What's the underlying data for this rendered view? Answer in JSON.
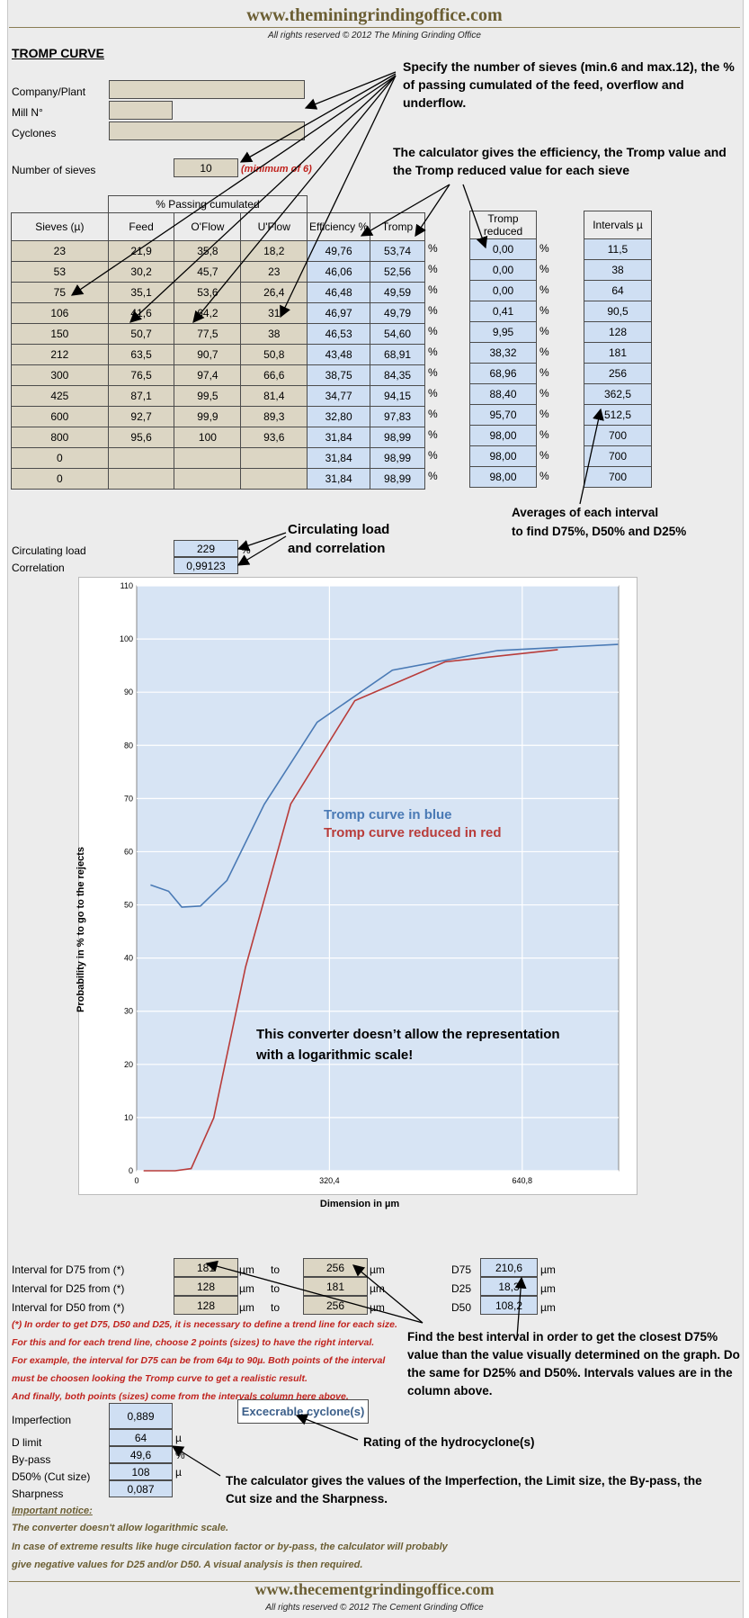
{
  "header": {
    "site": "www.theminingrindingoffice.com",
    "rights": "All rights reserved © 2012 The Mining Grinding Office"
  },
  "footer": {
    "site": "www.thecementgrindingoffice.com",
    "rights": "All rights reserved © 2012 The Cement Grinding Office"
  },
  "title": "TROMP CURVE",
  "form": {
    "company_label": "Company/Plant",
    "mill_label": "Mill N°",
    "cyclones_label": "Cyclones",
    "company_value": "",
    "mill_value": "",
    "cyclones_value": "",
    "sieves_label": "Number of sieves",
    "sieves_value": "10",
    "sieves_hint": "(minimum of 6)"
  },
  "notes": {
    "specify": "Specify the number of sieves (min.6 and max.12), the % of passing cumulated of the feed, overflow and underflow.",
    "calculator": "The calculator gives the efficiency, the Tromp value and the Tromp reduced value for each sieve",
    "averages_1": "Averages of each interval",
    "averages_2": "to find D75%, D50% and D25%",
    "circ_1": "Circulating load",
    "circ_2": "and correlation",
    "graph_note_1": "This converter doesn’t allow the representation",
    "graph_note_2": "with a logarithmic  scale!",
    "best_interval": "Find the best interval in order to get the closest D75% value than the value visually determined on the graph. Do the same for D25% and D50%. Intervals values are in the column above.",
    "rating": "Rating of the hydrocyclone(s)",
    "values_note": "The calculator gives the values of  the Imperfection, the Limit size, the By-pass, the Cut size and the Sharpness."
  },
  "table": {
    "group_header": "% Passing cumulated",
    "headers": {
      "sieves": "Sieves (µ)",
      "feed": "Feed",
      "oflow": "O'Flow",
      "uflow": "U'Flow",
      "efficiency": "Efficiency %",
      "tromp": "Tromp",
      "tromp_reduced": "Tromp reduced",
      "intervals": "Intervals µ"
    },
    "pct": "%",
    "rows": [
      {
        "sieve": "23",
        "feed": "21,9",
        "oflow": "35,8",
        "uflow": "18,2",
        "eff": "49,76",
        "tromp": "53,74",
        "reduced": "0,00",
        "interval": "11,5"
      },
      {
        "sieve": "53",
        "feed": "30,2",
        "oflow": "45,7",
        "uflow": "23",
        "eff": "46,06",
        "tromp": "52,56",
        "reduced": "0,00",
        "interval": "38"
      },
      {
        "sieve": "75",
        "feed": "35,1",
        "oflow": "53,6",
        "uflow": "26,4",
        "eff": "46,48",
        "tromp": "49,59",
        "reduced": "0,00",
        "interval": "64"
      },
      {
        "sieve": "106",
        "feed": "41,6",
        "oflow": "64,2",
        "uflow": "31",
        "eff": "46,97",
        "tromp": "49,79",
        "reduced": "0,41",
        "interval": "90,5"
      },
      {
        "sieve": "150",
        "feed": "50,7",
        "oflow": "77,5",
        "uflow": "38",
        "eff": "46,53",
        "tromp": "54,60",
        "reduced": "9,95",
        "interval": "128"
      },
      {
        "sieve": "212",
        "feed": "63,5",
        "oflow": "90,7",
        "uflow": "50,8",
        "eff": "43,48",
        "tromp": "68,91",
        "reduced": "38,32",
        "interval": "181"
      },
      {
        "sieve": "300",
        "feed": "76,5",
        "oflow": "97,4",
        "uflow": "66,6",
        "eff": "38,75",
        "tromp": "84,35",
        "reduced": "68,96",
        "interval": "256"
      },
      {
        "sieve": "425",
        "feed": "87,1",
        "oflow": "99,5",
        "uflow": "81,4",
        "eff": "34,77",
        "tromp": "94,15",
        "reduced": "88,40",
        "interval": "362,5"
      },
      {
        "sieve": "600",
        "feed": "92,7",
        "oflow": "99,9",
        "uflow": "89,3",
        "eff": "32,80",
        "tromp": "97,83",
        "reduced": "95,70",
        "interval": "512,5"
      },
      {
        "sieve": "800",
        "feed": "95,6",
        "oflow": "100",
        "uflow": "93,6",
        "eff": "31,84",
        "tromp": "98,99",
        "reduced": "98,00",
        "interval": "700"
      },
      {
        "sieve": "0",
        "feed": "",
        "oflow": "",
        "uflow": "",
        "eff": "31,84",
        "tromp": "98,99",
        "reduced": "98,00",
        "interval": "700"
      },
      {
        "sieve": "0",
        "feed": "",
        "oflow": "",
        "uflow": "",
        "eff": "31,84",
        "tromp": "98,99",
        "reduced": "98,00",
        "interval": "700"
      }
    ]
  },
  "circulating": {
    "label": "Circulating load",
    "value": "229",
    "unit": "%",
    "corr_label": "Correlation",
    "corr_value": "0,99123"
  },
  "colors": {
    "blue_curve": "#4a7ab5",
    "red_curve": "#b83c3a",
    "plot_bg": "#d7e4f4",
    "tan_cell": "#dcd6c4",
    "blue_cell": "#cfdff3"
  },
  "chart_data": {
    "type": "line",
    "ylabel": "Probability in % to go to the rejects",
    "xlabel": "Dimension in µm",
    "xlim": [
      0,
      801
    ],
    "ylim": [
      0,
      110
    ],
    "xticks": [
      "0",
      "320,4",
      "640,8"
    ],
    "yticks": [
      "0",
      "10",
      "20",
      "30",
      "40",
      "50",
      "60",
      "70",
      "80",
      "90",
      "100",
      "110"
    ],
    "grid": true,
    "legend": [
      "Tromp curve in blue",
      "Tromp curve reduced in red"
    ],
    "series": [
      {
        "name": "Tromp curve in blue",
        "color": "#4a7ab5",
        "x": [
          23,
          53,
          75,
          106,
          150,
          212,
          300,
          425,
          600,
          800
        ],
        "y": [
          53.74,
          52.56,
          49.59,
          49.79,
          54.6,
          68.91,
          84.35,
          94.15,
          97.83,
          98.99
        ]
      },
      {
        "name": "Tromp curve reduced in red",
        "color": "#b83c3a",
        "x": [
          11.5,
          38,
          64,
          90.5,
          128,
          181,
          256,
          362.5,
          512.5,
          700
        ],
        "y": [
          0.0,
          0.0,
          0.0,
          0.41,
          9.95,
          38.32,
          68.96,
          88.4,
          95.7,
          98.0
        ]
      }
    ]
  },
  "intervals": {
    "d75_label": "Interval for D75 from (*)",
    "d25_label": "Interval for D25 from (*)",
    "d50_label": "Interval for D50 from (*)",
    "d75_from": "181",
    "d75_to": "256",
    "d25_from": "128",
    "d25_to": "181",
    "d50_from": "128",
    "d50_to": "256",
    "um": "µm",
    "to": "to",
    "d75_name": "D75",
    "d25_name": "D25",
    "d50_name": "D50",
    "d75_value": "210,6",
    "d25_value": "18,3",
    "d50_value": "108,2"
  },
  "remarks": [
    "(*) In order to get D75, D50 and D25, it is necessary to define a trend line for each size.",
    "For this and for each trend line, choose 2 points (sizes) to have the right interval.",
    "For example, the interval for D75 can be from 64µ to 90µ. Both points of the interval",
    "must be choosen looking the Tromp curve to get a realistic result.",
    "And finally, both points (sizes) come from the intervals column here above."
  ],
  "results": {
    "imperfection_label": "Imperfection",
    "imperfection": "0,889",
    "dlimit_label": "D limit",
    "dlimit": "64",
    "dlimit_unit": "µ",
    "bypass_label": "By-pass",
    "bypass": "49,6",
    "bypass_unit": "%",
    "d50_label": "D50% (Cut size)",
    "d50": "108",
    "d50_unit": "µ",
    "sharpness_label": "Sharpness",
    "sharpness": "0,087",
    "rating": "Excecrable cyclone(s)"
  },
  "important": {
    "title": "Important notice:",
    "line1": "The converter doesn't allow logarithmic scale.",
    "line2": "In case of extreme results like huge circulation factor or by-pass, the calculator will probably",
    "line3": "give negative values for D25 and/or D50. A visual analysis is then required."
  }
}
